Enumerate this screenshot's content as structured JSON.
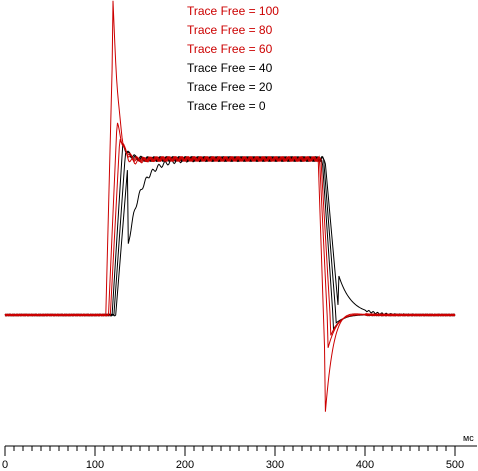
{
  "chart_data": {
    "type": "line",
    "xlabel": "мс",
    "xlim": [
      0,
      500
    ],
    "x_ticks": [
      0,
      100,
      200,
      300,
      400,
      500
    ],
    "x_tick_labels": [
      "0",
      "100",
      "200",
      "300",
      "400",
      "500"
    ],
    "grid": false,
    "legend_position": "top-center",
    "pulse": {
      "baseline_start": 0,
      "rise_start": 112,
      "plateau_start": 165,
      "fall_start": 348,
      "settle_end": 400,
      "end": 500
    },
    "series": [
      {
        "name": "Trace Free = 100",
        "color": "#cc0000",
        "rise_delay": 112,
        "overshoot": 1.0,
        "undershoot": 0.62,
        "tau": 7
      },
      {
        "name": "Trace Free = 80",
        "color": "#cc0000",
        "rise_delay": 115,
        "overshoot": 0.25,
        "undershoot": 0.21,
        "tau": 8
      },
      {
        "name": "Trace Free = 60",
        "color": "#cc0000",
        "rise_delay": 117,
        "overshoot": 0.15,
        "undershoot": 0.13,
        "tau": 8
      },
      {
        "name": "Trace Free = 40",
        "color": "#000000",
        "rise_delay": 119,
        "overshoot": 0.09,
        "undershoot": 0.09,
        "tau": 8
      },
      {
        "name": "Trace Free = 20",
        "color": "#000000",
        "rise_delay": 121,
        "overshoot": 0.05,
        "undershoot": 0.05,
        "tau": 9
      },
      {
        "name": "Trace Free = 0",
        "color": "#000000",
        "rise_delay": 123,
        "overshoot": 0.0,
        "undershoot": 0.0,
        "tau": 14
      }
    ]
  }
}
